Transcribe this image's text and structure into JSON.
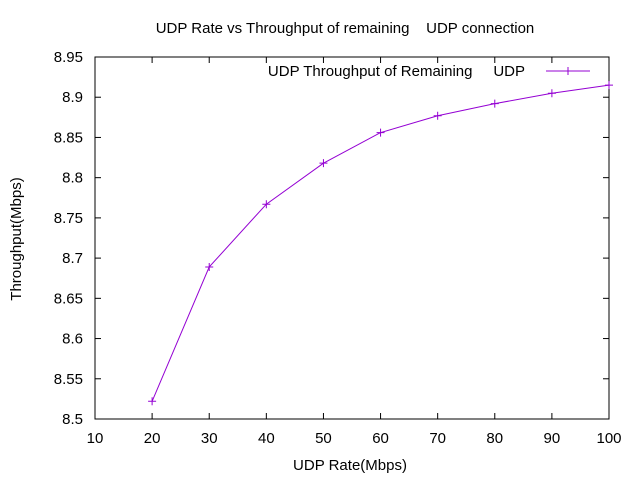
{
  "chart_data": {
    "type": "line",
    "title": "UDP Rate vs Throughput of remaining    UDP connection",
    "xlabel": "UDP Rate(Mbps)",
    "ylabel": "Throughput(Mbps)",
    "xlim": [
      10,
      100
    ],
    "ylim": [
      8.5,
      8.95
    ],
    "x_ticks": [
      "10",
      "20",
      "30",
      "40",
      "50",
      "60",
      "70",
      "80",
      "90",
      "100"
    ],
    "y_ticks": [
      "8.5",
      "8.55",
      "8.6",
      "8.65",
      "8.7",
      "8.75",
      "8.8",
      "8.85",
      "8.9",
      "8.95"
    ],
    "grid": false,
    "legend_position": "top-right",
    "series": [
      {
        "name": "UDP Throughput of Remaining     UDP",
        "color": "#9400d3",
        "marker": "plus",
        "x": [
          20,
          30,
          40,
          50,
          60,
          70,
          80,
          90,
          100
        ],
        "y": [
          8.522,
          8.689,
          8.767,
          8.818,
          8.856,
          8.877,
          8.892,
          8.905,
          8.915
        ]
      }
    ]
  }
}
